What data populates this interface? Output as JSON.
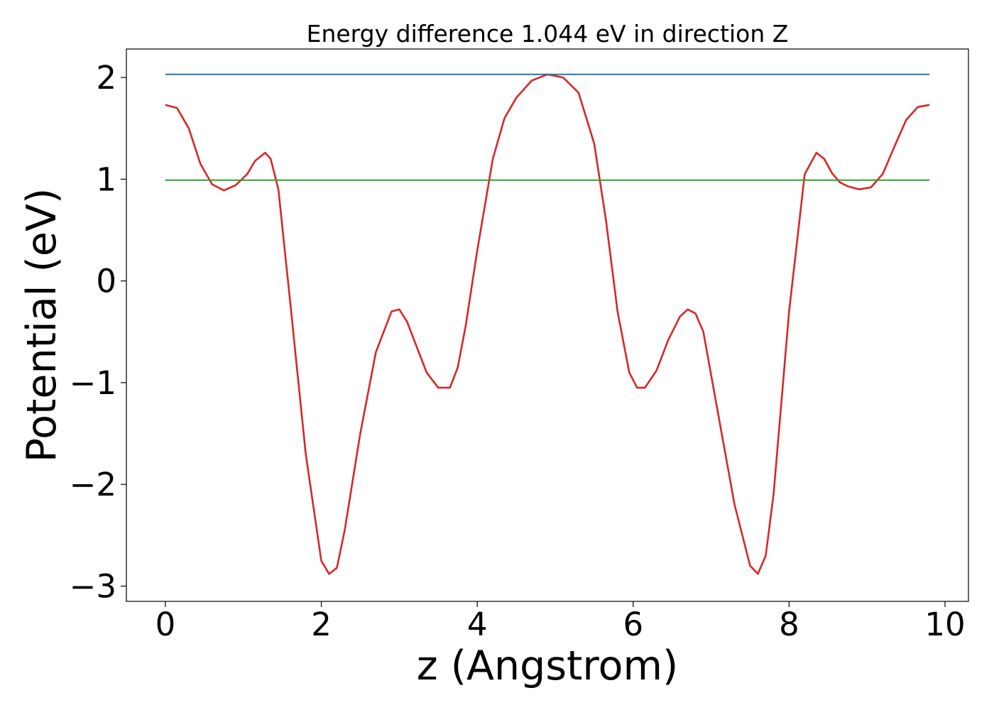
{
  "chart_data": {
    "type": "line",
    "title": "Energy difference 1.044 eV in direction Z",
    "xlabel": "z (Angstrom)",
    "ylabel": "Potential (eV)",
    "xlim": [
      -0.5,
      10.3
    ],
    "ylim": [
      -3.15,
      2.28
    ],
    "xticks": [
      0,
      2,
      4,
      6,
      8,
      10
    ],
    "yticks": [
      -3,
      -2,
      -1,
      0,
      1,
      2
    ],
    "xtick_labels": [
      "0",
      "2",
      "4",
      "6",
      "8",
      "10"
    ],
    "ytick_labels": [
      "−3",
      "−2",
      "−1",
      "0",
      "1",
      "2"
    ],
    "grid": false,
    "legend": "none",
    "series": [
      {
        "color": "#d62728",
        "x": [
          0.0,
          0.15,
          0.3,
          0.45,
          0.6,
          0.75,
          0.9,
          1.05,
          1.15,
          1.28,
          1.35,
          1.45,
          1.6,
          1.8,
          2.0,
          2.1,
          2.2,
          2.3,
          2.5,
          2.7,
          2.9,
          3.0,
          3.1,
          3.2,
          3.35,
          3.5,
          3.65,
          3.75,
          3.85,
          4.0,
          4.2,
          4.35,
          4.5,
          4.7,
          4.9,
          5.1,
          5.3,
          5.5,
          5.65,
          5.8,
          5.95,
          6.05,
          6.15,
          6.3,
          6.45,
          6.6,
          6.7,
          6.8,
          6.9,
          7.1,
          7.3,
          7.5,
          7.6,
          7.7,
          7.8,
          8.0,
          8.2,
          8.35,
          8.45,
          8.55,
          8.65,
          8.75,
          8.9,
          9.05,
          9.2,
          9.35,
          9.5,
          9.65,
          9.8
        ],
        "y": [
          1.73,
          1.7,
          1.5,
          1.15,
          0.95,
          0.89,
          0.94,
          1.05,
          1.18,
          1.26,
          1.2,
          0.9,
          -0.2,
          -1.7,
          -2.75,
          -2.88,
          -2.82,
          -2.45,
          -1.5,
          -0.7,
          -0.3,
          -0.28,
          -0.4,
          -0.6,
          -0.9,
          -1.05,
          -1.05,
          -0.85,
          -0.45,
          0.3,
          1.2,
          1.6,
          1.8,
          1.97,
          2.03,
          2.0,
          1.85,
          1.35,
          0.6,
          -0.3,
          -0.9,
          -1.05,
          -1.05,
          -0.88,
          -0.58,
          -0.35,
          -0.28,
          -0.32,
          -0.5,
          -1.35,
          -2.2,
          -2.8,
          -2.88,
          -2.7,
          -2.1,
          -0.3,
          1.05,
          1.26,
          1.2,
          1.06,
          0.97,
          0.93,
          0.9,
          0.92,
          1.05,
          1.32,
          1.58,
          1.71,
          1.73
        ]
      },
      {
        "color": "#1f77b4",
        "x": [
          0.0,
          9.8
        ],
        "y": [
          2.03,
          2.03
        ]
      },
      {
        "color": "#2ca02c",
        "x": [
          0.0,
          9.8
        ],
        "y": [
          0.99,
          0.99
        ]
      }
    ]
  }
}
